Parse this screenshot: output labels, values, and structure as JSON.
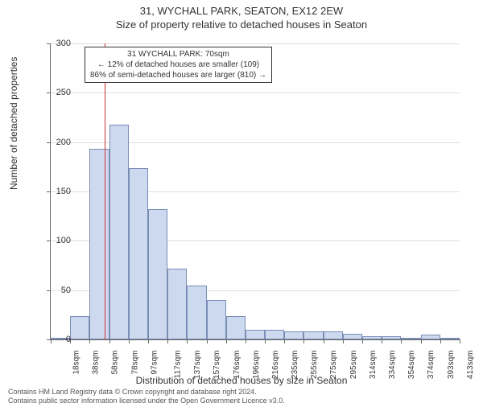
{
  "title_main": "31, WYCHALL PARK, SEATON, EX12 2EW",
  "title_sub": "Size of property relative to detached houses in Seaton",
  "ylabel": "Number of detached properties",
  "xlabel": "Distribution of detached houses by size in Seaton",
  "chart": {
    "type": "histogram",
    "ylim": [
      0,
      300
    ],
    "yticks": [
      0,
      50,
      100,
      150,
      200,
      250,
      300
    ],
    "xticks_labels": [
      "18sqm",
      "38sqm",
      "58sqm",
      "78sqm",
      "97sqm",
      "117sqm",
      "137sqm",
      "157sqm",
      "176sqm",
      "196sqm",
      "216sqm",
      "235sqm",
      "255sqm",
      "275sqm",
      "295sqm",
      "314sqm",
      "334sqm",
      "354sqm",
      "374sqm",
      "393sqm",
      "413sqm"
    ],
    "bar_values": [
      0,
      24,
      193,
      218,
      174,
      132,
      72,
      55,
      40,
      24,
      10,
      10,
      8,
      8,
      8,
      6,
      3,
      3,
      2,
      5,
      0
    ],
    "bar_fill": "#cdd9ee",
    "bar_stroke": "#7a8db5",
    "grid_color": "#dddddd",
    "axis_color": "#666666",
    "background_color": "#ffffff",
    "marker_line_color": "#cc3333",
    "marker_x_value": 70,
    "x_range": [
      18,
      413
    ]
  },
  "annotation": {
    "line1": "31 WYCHALL PARK: 70sqm",
    "line2": "← 12% of detached houses are smaller (109)",
    "line3": "86% of semi-detached houses are larger (810) →"
  },
  "footer_line1": "Contains HM Land Registry data © Crown copyright and database right 2024.",
  "footer_line2": "Contains public sector information licensed under the Open Government Licence v3.0."
}
